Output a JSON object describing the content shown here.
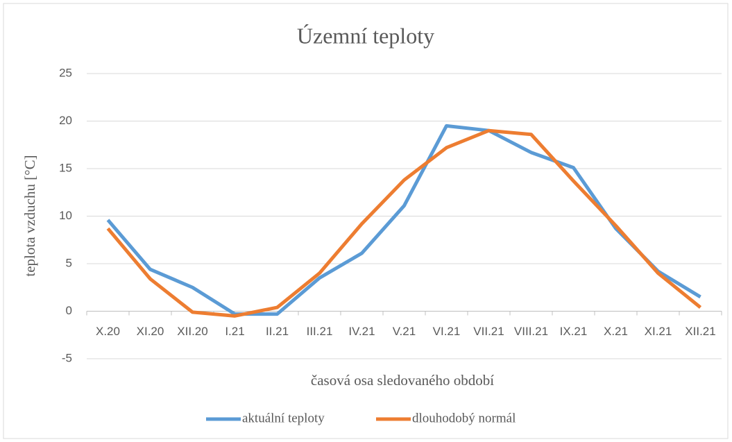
{
  "chart_data": {
    "type": "line",
    "title": "Územní teploty",
    "x_label": "časová osa sledovaného období",
    "y_label": "teplota vzduchu [°C]",
    "categories": [
      "X.20",
      "XI.20",
      "XII.20",
      "I.21",
      "II.21",
      "III.21",
      "IV.21",
      "V.21",
      "VI.21",
      "VII.21",
      "VIII.21",
      "IX.21",
      "X.21",
      "XI.21",
      "XII.21"
    ],
    "series": [
      {
        "name": "aktuální teploty",
        "color": "#5b9bd5",
        "values": [
          9.6,
          4.4,
          2.5,
          -0.3,
          -0.3,
          3.5,
          6.1,
          11.1,
          19.5,
          19.0,
          16.7,
          15.1,
          8.7,
          4.2,
          1.5
        ]
      },
      {
        "name": "dlouhodobý normál",
        "color": "#ed7d31",
        "values": [
          8.7,
          3.4,
          -0.1,
          -0.5,
          0.4,
          4.0,
          9.2,
          13.8,
          17.2,
          19.0,
          18.6,
          13.7,
          9.0,
          4.0,
          0.4
        ]
      }
    ],
    "ylim": [
      -5,
      25
    ],
    "yticks": [
      -5,
      0,
      5,
      10,
      15,
      20,
      25
    ],
    "grid": true,
    "legend": "bottom"
  }
}
